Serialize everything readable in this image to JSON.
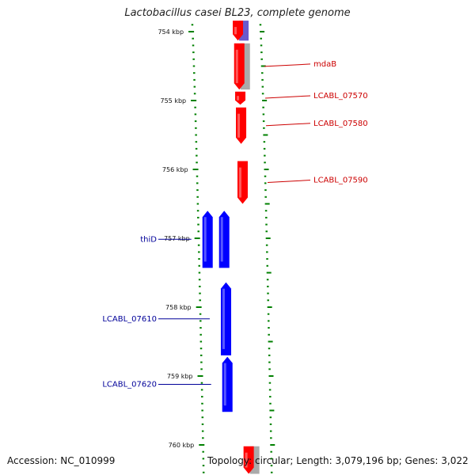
{
  "title": "Lactobacillus casei BL23, complete genome",
  "accession": "Accession: NC_010999",
  "topology": "Topology: circular; Length: 3,079,196 bp; Genes: 3,022",
  "scale_ticks": [
    {
      "label": "754 kbp",
      "kbp": 754
    },
    {
      "label": "755 kbp",
      "kbp": 755
    },
    {
      "label": "756 kbp",
      "kbp": 756
    },
    {
      "label": "757 kbp",
      "kbp": 757
    },
    {
      "label": "758 kbp",
      "kbp": 758
    },
    {
      "label": "759 kbp",
      "kbp": 759
    },
    {
      "label": "760 kbp",
      "kbp": 760
    }
  ],
  "genes": [
    {
      "name": "",
      "strand": "+",
      "start_kbp": 753.84,
      "end_kbp": 754.13,
      "color": "#ff0000"
    },
    {
      "name": "mdaB",
      "strand": "+",
      "start_kbp": 754.17,
      "end_kbp": 754.84,
      "color": "#ff0000"
    },
    {
      "name": "LCABL_07570",
      "strand": "+",
      "start_kbp": 754.87,
      "end_kbp": 755.06,
      "color": "#ff0000"
    },
    {
      "name": "LCABL_07580",
      "strand": "+",
      "start_kbp": 755.1,
      "end_kbp": 755.63,
      "color": "#ff0000"
    },
    {
      "name": "LCABL_07590",
      "strand": "+",
      "start_kbp": 755.88,
      "end_kbp": 756.5,
      "color": "#ff0000"
    },
    {
      "name": "thiD",
      "strand": "-",
      "start_kbp": 756.6,
      "end_kbp": 757.43,
      "color": "#0000ff"
    },
    {
      "name": "",
      "strand": "-",
      "start_kbp": 756.6,
      "end_kbp": 757.43,
      "color": "#0000ff"
    },
    {
      "name": "LCABL_07610",
      "strand": "-",
      "start_kbp": 757.64,
      "end_kbp": 758.7,
      "color": "#0000ff"
    },
    {
      "name": "LCABL_07620",
      "strand": "-",
      "start_kbp": 758.72,
      "end_kbp": 759.52,
      "color": "#0000ff"
    },
    {
      "name": "",
      "strand": "+",
      "start_kbp": 760.02,
      "end_kbp": 760.42,
      "color": "#ff0000"
    }
  ],
  "feature_blocks": [
    {
      "track": "outer",
      "start_kbp": 753.84,
      "end_kbp": 754.13,
      "color": "#6a5acd"
    },
    {
      "track": "outer",
      "start_kbp": 754.17,
      "end_kbp": 754.84,
      "color": "#aaaaaa"
    },
    {
      "track": "outer",
      "start_kbp": 760.02,
      "end_kbp": 760.42,
      "color": "#aaaaaa"
    }
  ],
  "colors": {
    "forward_gene": "#ff0000",
    "reverse_gene": "#0000ff",
    "backbone": "#808080",
    "tick": "#008000",
    "forward_label": "#cc0000",
    "reverse_label": "#000099"
  }
}
